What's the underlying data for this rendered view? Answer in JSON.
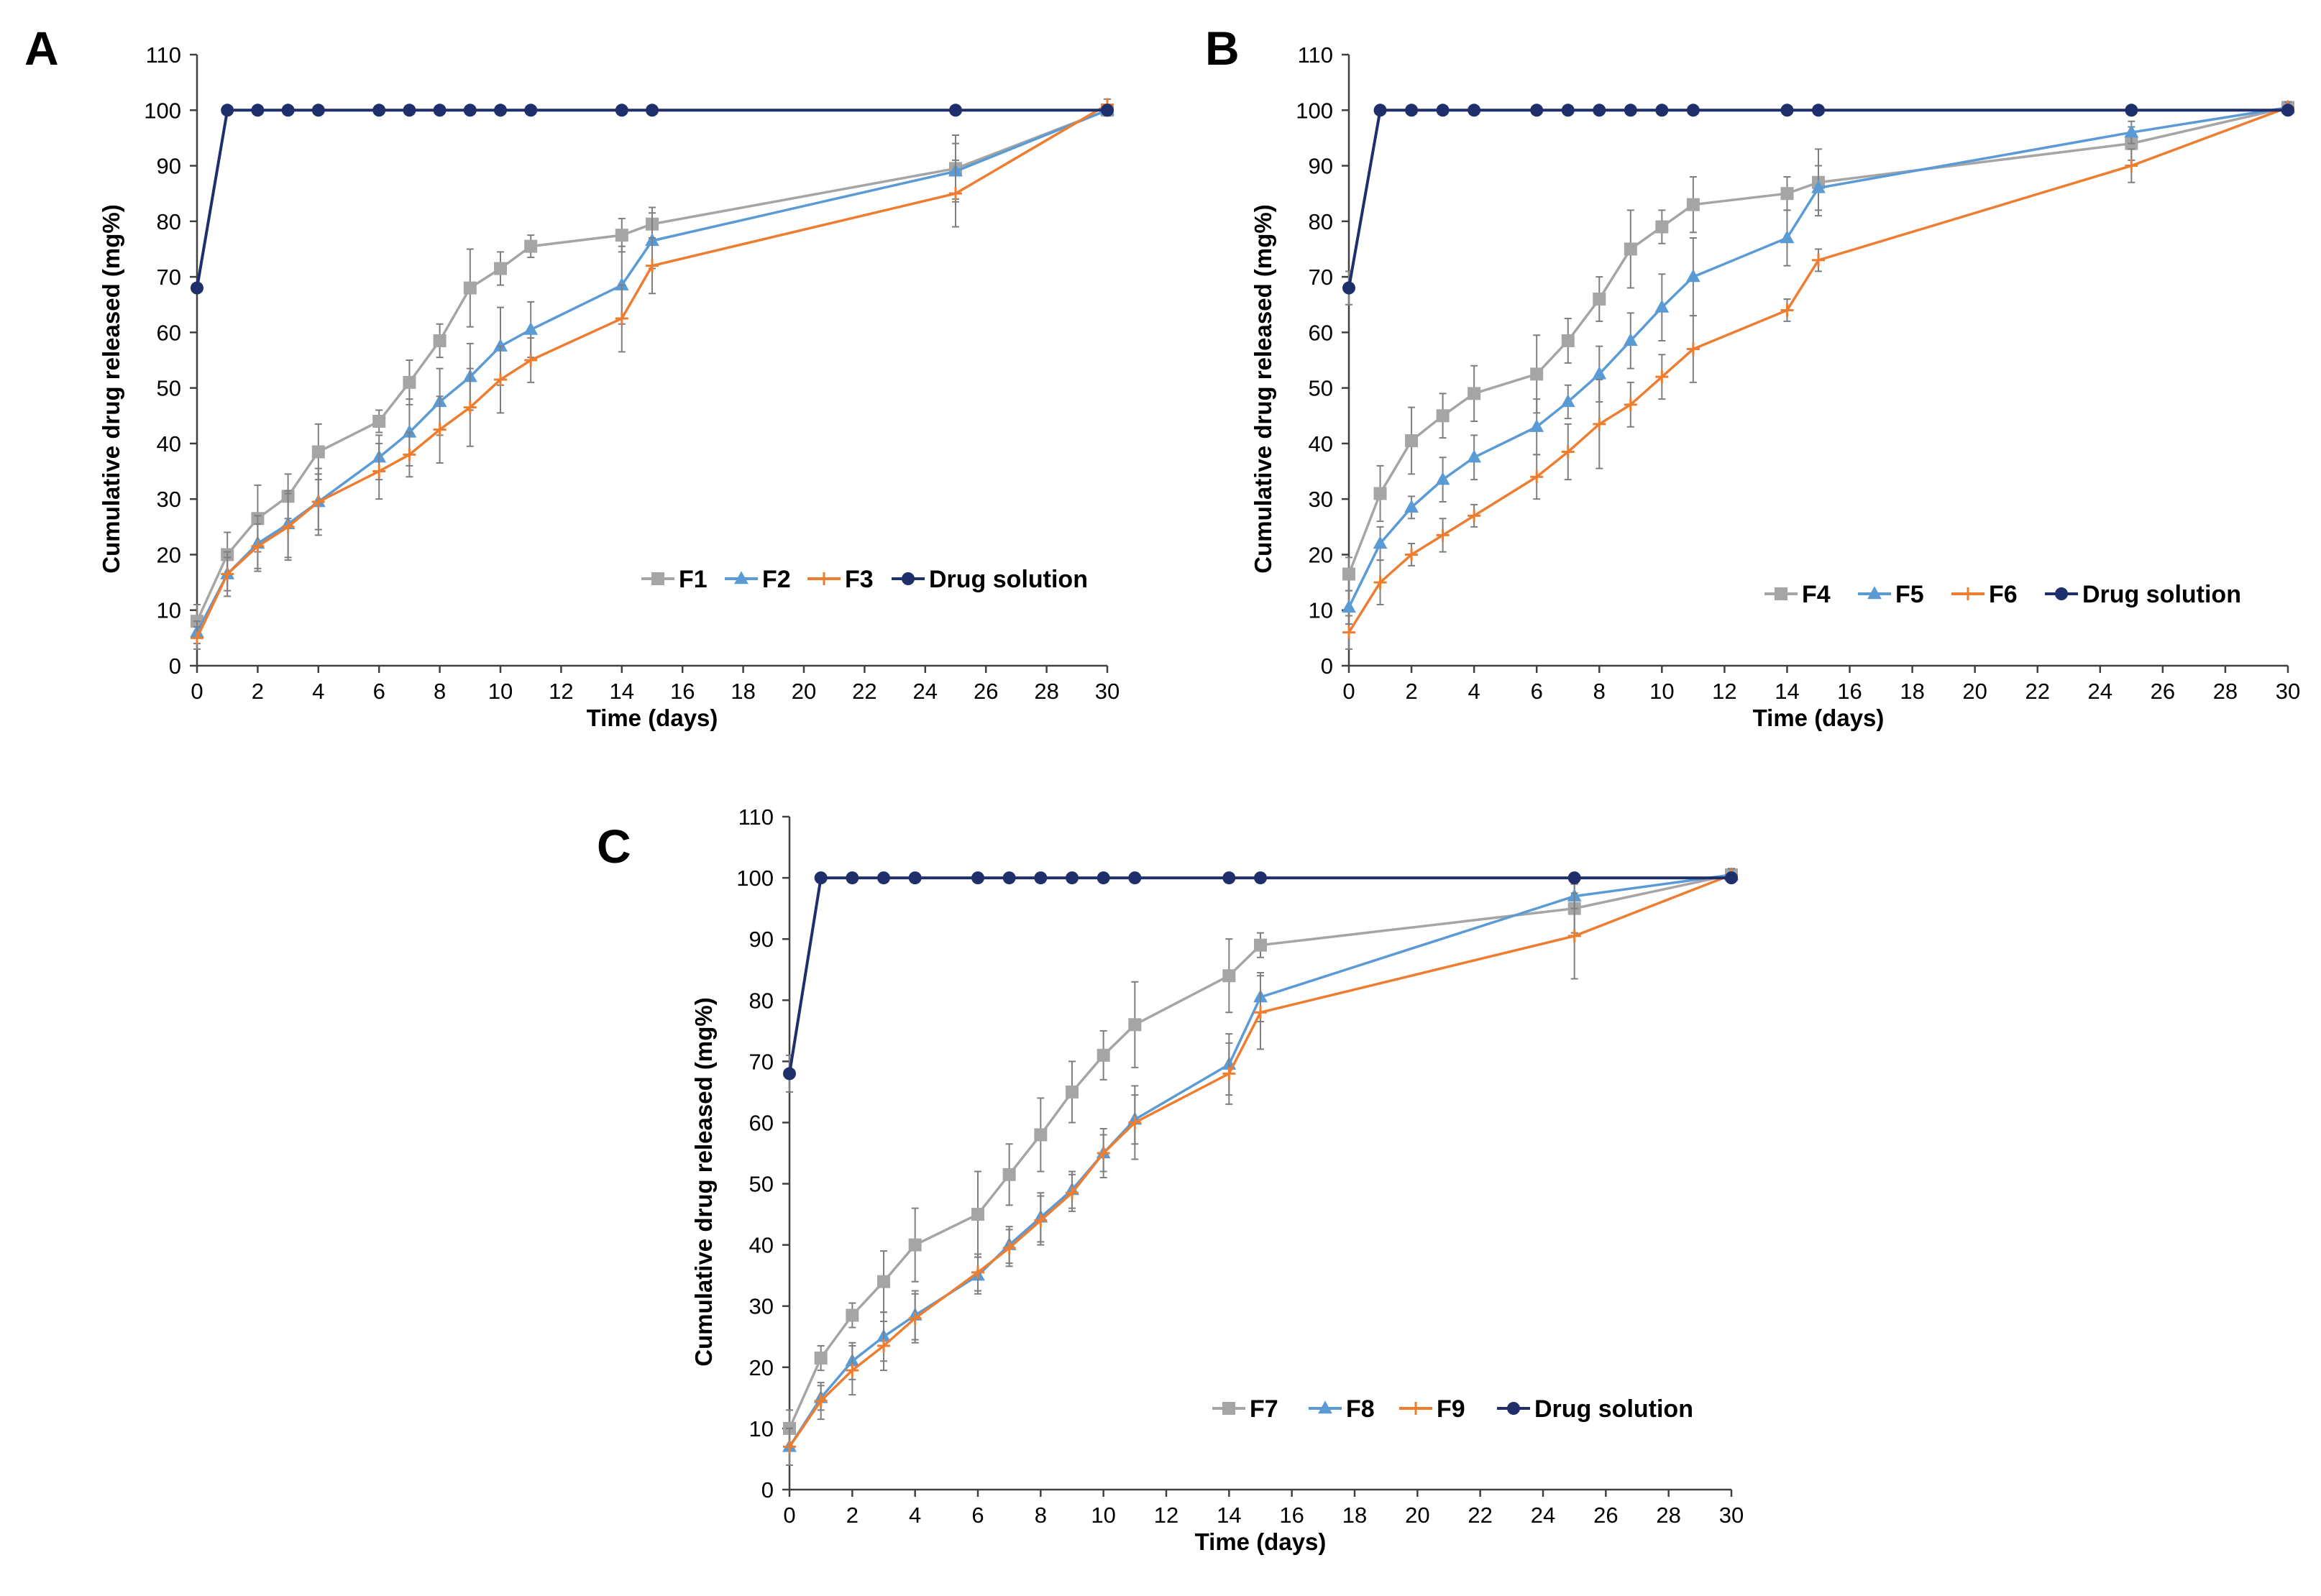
{
  "colors": {
    "gray": "#a5a5a5",
    "blue": "#5b9bd5",
    "orange": "#ed7d31",
    "navy": "#1f2f6b",
    "error_bar": "#7f7f7f"
  },
  "chart_data": [
    {
      "type": "line",
      "panel": "A",
      "xlabel": "Time (days)",
      "ylabel": "Cumulative drug released (mg%)",
      "xlim": [
        0,
        30
      ],
      "ylim": [
        0,
        110
      ],
      "xticks": [
        0,
        2,
        4,
        6,
        8,
        10,
        12,
        14,
        16,
        18,
        20,
        22,
        24,
        26,
        28,
        30
      ],
      "yticks": [
        0,
        10,
        20,
        30,
        40,
        50,
        60,
        70,
        80,
        90,
        100,
        110
      ],
      "x": [
        0,
        1,
        2,
        3,
        4,
        6,
        7,
        8,
        9,
        10,
        11,
        14,
        15,
        25,
        30
      ],
      "legend_position": "bottom-right",
      "series": [
        {
          "name": "F1",
          "color": "gray",
          "marker": "square",
          "values": [
            8,
            20,
            26.5,
            30.5,
            38.5,
            44,
            51,
            58.5,
            68,
            71.5,
            75.5,
            77.5,
            79.5,
            89.5,
            100
          ],
          "errors": [
            3,
            4,
            6,
            4,
            5,
            2,
            4,
            3,
            7,
            3,
            2,
            3,
            3,
            6,
            1
          ]
        },
        {
          "name": "F2",
          "color": "blue",
          "marker": "triangle",
          "values": [
            6,
            16.5,
            22,
            25.5,
            29.5,
            37.5,
            42,
            47.5,
            52,
            57.5,
            60.5,
            68.5,
            76.5,
            89,
            100
          ],
          "errors": [
            2,
            4,
            5,
            6,
            6,
            4,
            6,
            6,
            6,
            7,
            5,
            7,
            5,
            5,
            1
          ]
        },
        {
          "name": "F3",
          "color": "orange",
          "marker": "cross",
          "values": [
            5,
            16.5,
            21.5,
            25,
            29.5,
            35,
            38,
            42.5,
            46.5,
            51.5,
            55,
            62.5,
            72,
            85,
            101
          ],
          "errors": [
            2,
            3,
            4,
            6,
            5,
            5,
            4,
            6,
            7,
            6,
            4,
            6,
            5,
            6,
            1
          ]
        },
        {
          "name": "Drug solution",
          "color": "navy",
          "marker": "circle",
          "values": [
            68,
            100,
            100,
            100,
            100,
            100,
            100,
            100,
            100,
            100,
            100,
            100,
            100,
            100,
            100
          ],
          "errors": [
            0,
            0,
            0,
            0,
            0,
            0,
            0,
            0,
            0,
            0,
            0,
            0,
            0,
            0,
            0
          ]
        }
      ]
    },
    {
      "type": "line",
      "panel": "B",
      "xlabel": "Time (days)",
      "ylabel": "Cumulative drug released (mg%)",
      "xlim": [
        0,
        30
      ],
      "ylim": [
        0,
        110
      ],
      "xticks": [
        0,
        2,
        4,
        6,
        8,
        10,
        12,
        14,
        16,
        18,
        20,
        22,
        24,
        26,
        28,
        30
      ],
      "yticks": [
        0,
        10,
        20,
        30,
        40,
        50,
        60,
        70,
        80,
        90,
        100,
        110
      ],
      "x": [
        0,
        1,
        2,
        3,
        4,
        6,
        7,
        8,
        9,
        10,
        11,
        14,
        15,
        25,
        30
      ],
      "legend_position": "bottom-right",
      "series": [
        {
          "name": "F4",
          "color": "gray",
          "marker": "square",
          "values": [
            16.5,
            31,
            40.5,
            45,
            49,
            52.5,
            58.5,
            66,
            75,
            79,
            83,
            85,
            87,
            94,
            100.5
          ],
          "errors": [
            3,
            5,
            6,
            4,
            5,
            7,
            4,
            4,
            7,
            3,
            5,
            3,
            6,
            3,
            1
          ]
        },
        {
          "name": "F5",
          "color": "blue",
          "marker": "triangle",
          "values": [
            10.5,
            22,
            28.5,
            33.5,
            37.5,
            43,
            47.5,
            52.5,
            58.5,
            64.5,
            70,
            77,
            86,
            96,
            100.5
          ],
          "errors": [
            3,
            3,
            2,
            4,
            4,
            5,
            3,
            5,
            5,
            6,
            7,
            5,
            4,
            2,
            1
          ]
        },
        {
          "name": "F6",
          "color": "orange",
          "marker": "cross",
          "values": [
            6,
            15,
            20,
            23.5,
            27,
            34,
            38.5,
            43.5,
            47,
            52,
            57,
            64,
            73,
            90,
            100.5
          ],
          "errors": [
            3,
            4,
            2,
            3,
            2,
            4,
            5,
            8,
            4,
            4,
            6,
            2,
            2,
            3,
            1
          ]
        },
        {
          "name": "Drug solution",
          "color": "navy",
          "marker": "circle",
          "values": [
            68,
            100,
            100,
            100,
            100,
            100,
            100,
            100,
            100,
            100,
            100,
            100,
            100,
            100,
            100
          ],
          "errors": [
            3,
            0,
            0,
            0,
            0,
            0,
            0,
            0,
            0,
            0,
            0,
            0,
            0,
            0,
            0
          ]
        }
      ]
    },
    {
      "type": "line",
      "panel": "C",
      "xlabel": "Time (days)",
      "ylabel": "Cumulative drug released (mg%)",
      "xlim": [
        0,
        30
      ],
      "ylim": [
        0,
        110
      ],
      "xticks": [
        0,
        2,
        4,
        6,
        8,
        10,
        12,
        14,
        16,
        18,
        20,
        22,
        24,
        26,
        28,
        30
      ],
      "yticks": [
        0,
        10,
        20,
        30,
        40,
        50,
        60,
        70,
        80,
        90,
        100,
        110
      ],
      "x": [
        0,
        1,
        2,
        3,
        4,
        6,
        7,
        8,
        9,
        10,
        11,
        14,
        15,
        25,
        30
      ],
      "legend_position": "bottom-right",
      "series": [
        {
          "name": "F7",
          "color": "gray",
          "marker": "square",
          "values": [
            10,
            21.5,
            28.5,
            34,
            40,
            45,
            51.5,
            58,
            65,
            71,
            76,
            84,
            89,
            95,
            100.5
          ],
          "errors": [
            3,
            2,
            2,
            5,
            6,
            7,
            5,
            6,
            5,
            4,
            7,
            6,
            2,
            4,
            1
          ]
        },
        {
          "name": "F8",
          "color": "blue",
          "marker": "triangle",
          "values": [
            7,
            15,
            21,
            25,
            28.5,
            35,
            40,
            44.5,
            49,
            55,
            60.5,
            69.5,
            80.5,
            97,
            100.5
          ],
          "errors": [
            3,
            2,
            3,
            4,
            4,
            3,
            3,
            4,
            3,
            3,
            4,
            5,
            4,
            2,
            1
          ]
        },
        {
          "name": "F9",
          "color": "orange",
          "marker": "cross",
          "values": [
            7,
            14.5,
            19.5,
            23.5,
            28,
            35.5,
            39.5,
            44,
            48.5,
            55,
            60,
            68,
            78,
            90.5,
            100.5
          ],
          "errors": [
            3,
            3,
            4,
            4,
            4,
            3,
            3,
            4,
            3,
            4,
            6,
            5,
            6,
            7,
            1
          ]
        },
        {
          "name": "Drug solution",
          "color": "navy",
          "marker": "circle",
          "values": [
            68,
            100,
            100,
            100,
            100,
            100,
            100,
            100,
            100,
            100,
            100,
            100,
            100,
            100,
            100
          ],
          "errors": [
            3,
            0,
            0,
            0,
            0,
            0,
            0,
            0,
            0,
            0,
            0,
            0,
            0,
            0,
            0
          ]
        }
      ]
    }
  ]
}
